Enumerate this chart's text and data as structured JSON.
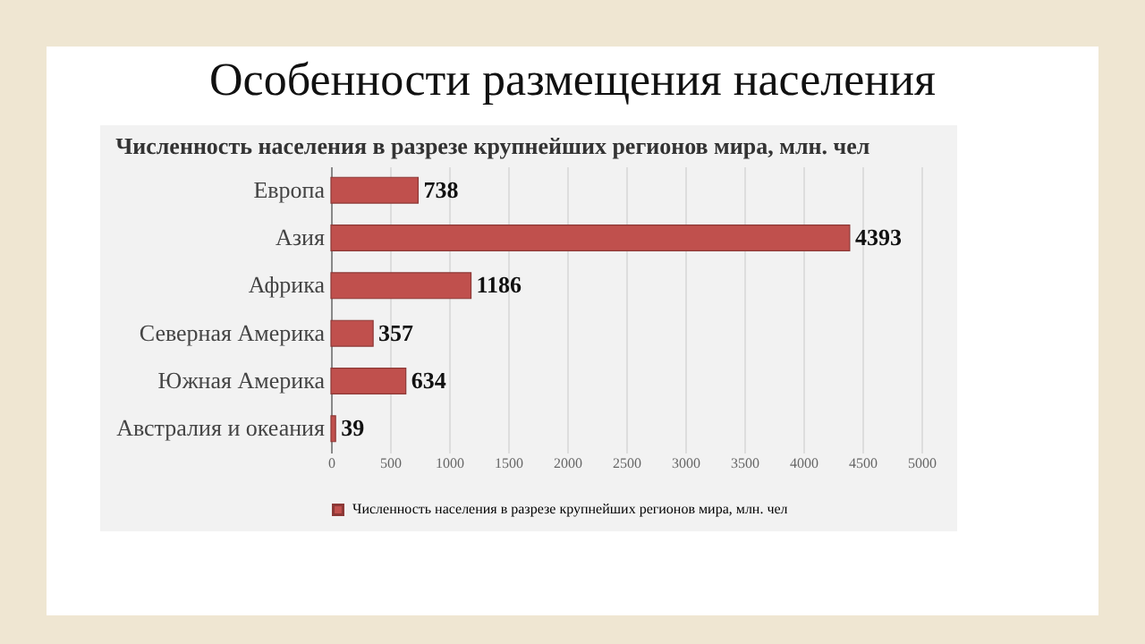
{
  "chart_data": {
    "type": "bar",
    "orientation": "horizontal",
    "title": "Особенности размещения населения",
    "subtitle": "Численность населения в разрезе крупнейших регионов мира, млн. чел",
    "categories": [
      "Европа",
      "Азия",
      "Африка",
      "Северная Америка",
      "Южная Америка",
      "Австралия и океания"
    ],
    "series": [
      {
        "name": "Численность населения в разрезе крупнейших регионов мира, млн. чел",
        "color": "#c0504d",
        "values": [
          738,
          4393,
          1186,
          357,
          634,
          39
        ]
      }
    ],
    "xlim": [
      0,
      5000
    ],
    "xticks": [
      0,
      500,
      1000,
      1500,
      2000,
      2500,
      3000,
      3500,
      4000,
      4500,
      5000
    ],
    "grid": "x",
    "legend": "bottom",
    "data_labels": true
  }
}
